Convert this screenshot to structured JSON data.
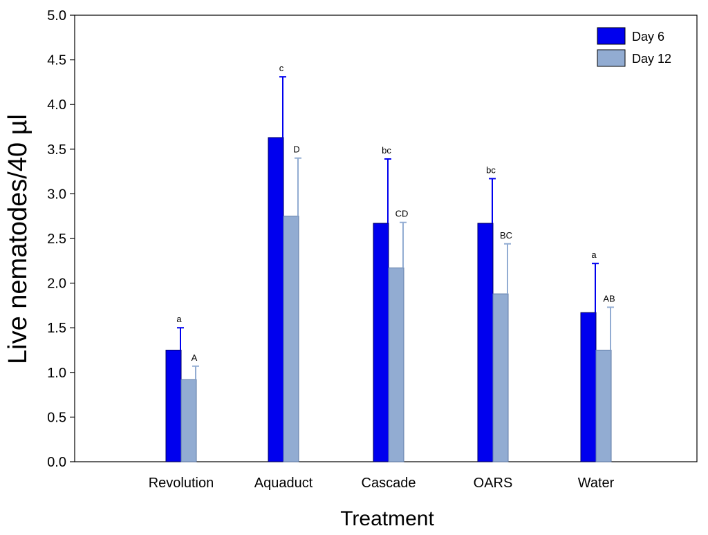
{
  "chart_data": {
    "type": "bar",
    "title": "",
    "xlabel": "Treatment",
    "ylabel": "Live nematodes/40 µl",
    "ylim": [
      0,
      5.0
    ],
    "yticks": [
      "0.0",
      "0.5",
      "1.0",
      "1.5",
      "2.0",
      "2.5",
      "3.0",
      "3.5",
      "4.0",
      "4.5",
      "5.0"
    ],
    "categories": [
      "Revolution",
      "Aquaduct",
      "Cascade",
      "OARS",
      "Water"
    ],
    "legend_position": "top-right",
    "series": [
      {
        "name": "Day 6",
        "color": "#0000ee",
        "values": [
          1.25,
          3.63,
          2.67,
          2.67,
          1.67
        ],
        "errors": [
          0.25,
          0.68,
          0.72,
          0.5,
          0.55
        ],
        "labels": [
          "a",
          "c",
          "bc",
          "bc",
          "a"
        ]
      },
      {
        "name": "Day 12",
        "color": "#92acd2",
        "values": [
          0.92,
          2.75,
          2.17,
          1.88,
          1.25
        ],
        "errors": [
          0.15,
          0.65,
          0.51,
          0.56,
          0.48
        ],
        "labels": [
          "A",
          "D",
          "CD",
          "BC",
          "AB"
        ]
      }
    ]
  }
}
